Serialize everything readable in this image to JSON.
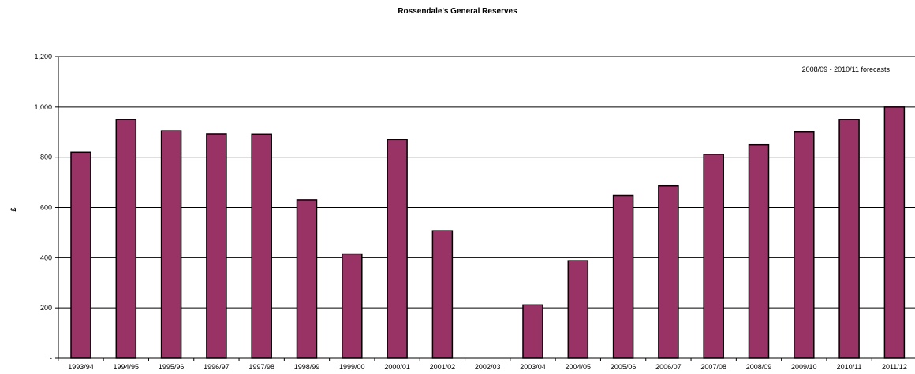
{
  "chart_data": {
    "type": "bar",
    "title": "Rossendale's General Reserves",
    "ylabel": "£",
    "xlabel": "",
    "annotation": "2008/09 - 2010/11 forecasts",
    "categories": [
      "1993/94",
      "1994/95",
      "1995/96",
      "1996/97",
      "1997/98",
      "1998/99",
      "1999/00",
      "2000/01",
      "2001/02",
      "2002/03",
      "2003/04",
      "2004/05",
      "2005/06",
      "2006/07",
      "2007/08",
      "2008/09",
      "2009/10",
      "2010/11",
      "2011/12"
    ],
    "values": [
      820,
      950,
      905,
      893,
      892,
      630,
      415,
      870,
      507,
      0,
      212,
      388,
      647,
      687,
      812,
      850,
      900,
      950,
      1000
    ],
    "ylim": [
      0,
      1200
    ],
    "yticks": [
      0,
      200,
      400,
      600,
      800,
      1000,
      1200
    ],
    "ytick_labels": [
      "-",
      "200",
      "400",
      "600",
      "800",
      "1,000",
      "1,200"
    ],
    "grid": true,
    "bar_color": "#993366"
  }
}
